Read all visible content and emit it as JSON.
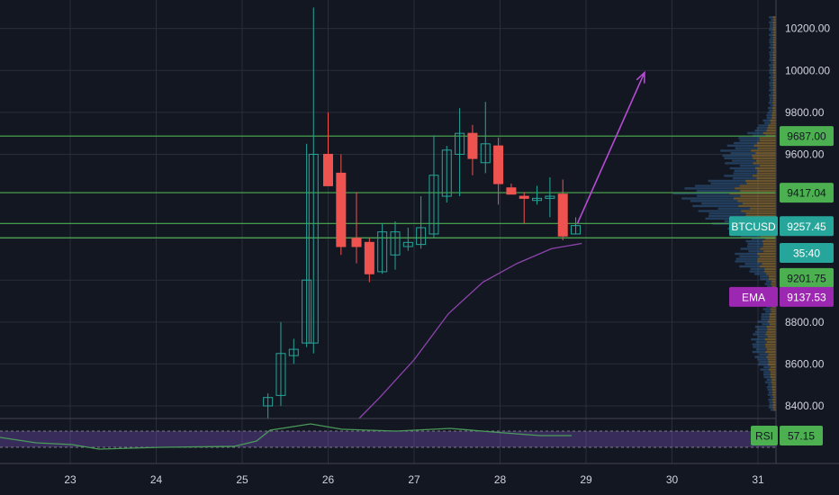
{
  "chart_data": {
    "type": "candlestick",
    "symbol": "BTCUSD",
    "x_dates": [
      "23",
      "24",
      "25",
      "26",
      "27",
      "28",
      "29",
      "30",
      "31"
    ],
    "ylim": [
      8340,
      10300
    ],
    "y_ticks": [
      8400,
      8600,
      8800,
      9600,
      9800,
      10000,
      10200
    ],
    "y_tick_labels": [
      "8400.00",
      "8600.00",
      "8800.00",
      "9600.00",
      "9800.00",
      "10000.00",
      "10200.00"
    ],
    "candles": [
      {
        "x": 25.3,
        "o": 8400,
        "h": 8460,
        "l": 8340,
        "c": 8440
      },
      {
        "x": 25.45,
        "o": 8450,
        "h": 8800,
        "l": 8400,
        "c": 8650
      },
      {
        "x": 25.6,
        "o": 8640,
        "h": 8720,
        "l": 8600,
        "c": 8670
      },
      {
        "x": 25.75,
        "o": 8700,
        "h": 9650,
        "l": 8680,
        "c": 9000
      },
      {
        "x": 25.83,
        "o": 8700,
        "h": 10300,
        "l": 8650,
        "c": 9600
      },
      {
        "x": 26.0,
        "o": 9600,
        "h": 9800,
        "l": 9460,
        "c": 9450
      },
      {
        "x": 26.15,
        "o": 9510,
        "h": 9600,
        "l": 9120,
        "c": 9160
      },
      {
        "x": 26.33,
        "o": 9200,
        "h": 9420,
        "l": 9080,
        "c": 9160
      },
      {
        "x": 26.48,
        "o": 9180,
        "h": 9200,
        "l": 8990,
        "c": 9030
      },
      {
        "x": 26.63,
        "o": 9040,
        "h": 9270,
        "l": 9030,
        "c": 9230
      },
      {
        "x": 26.78,
        "o": 9120,
        "h": 9280,
        "l": 9050,
        "c": 9230
      },
      {
        "x": 26.93,
        "o": 9160,
        "h": 9250,
        "l": 9140,
        "c": 9180
      },
      {
        "x": 27.08,
        "o": 9170,
        "h": 9400,
        "l": 9150,
        "c": 9250
      },
      {
        "x": 27.23,
        "o": 9220,
        "h": 9690,
        "l": 9200,
        "c": 9500
      },
      {
        "x": 27.38,
        "o": 9400,
        "h": 9640,
        "l": 9370,
        "c": 9620
      },
      {
        "x": 27.53,
        "o": 9600,
        "h": 9820,
        "l": 9400,
        "c": 9700
      },
      {
        "x": 27.68,
        "o": 9700,
        "h": 9740,
        "l": 9500,
        "c": 9580
      },
      {
        "x": 27.83,
        "o": 9560,
        "h": 9850,
        "l": 9510,
        "c": 9650
      },
      {
        "x": 27.98,
        "o": 9640,
        "h": 9680,
        "l": 9360,
        "c": 9460
      },
      {
        "x": 28.13,
        "o": 9440,
        "h": 9460,
        "l": 9410,
        "c": 9410
      },
      {
        "x": 28.28,
        "o": 9400,
        "h": 9420,
        "l": 9270,
        "c": 9390
      },
      {
        "x": 28.43,
        "o": 9380,
        "h": 9450,
        "l": 9360,
        "c": 9390
      },
      {
        "x": 28.58,
        "o": 9390,
        "h": 9490,
        "l": 9300,
        "c": 9400
      },
      {
        "x": 28.73,
        "o": 9410,
        "h": 9480,
        "l": 9190,
        "c": 9210
      },
      {
        "x": 28.88,
        "o": 9220,
        "h": 9300,
        "l": 9220,
        "c": 9260
      }
    ],
    "ema": {
      "name": "EMA",
      "points": [
        [
          26.36,
          8340
        ],
        [
          26.6,
          8440
        ],
        [
          27.0,
          8620
        ],
        [
          27.4,
          8840
        ],
        [
          27.8,
          8990
        ],
        [
          28.2,
          9080
        ],
        [
          28.6,
          9150
        ],
        [
          28.95,
          9175
        ]
      ]
    },
    "horizontal_levels": [
      9687.0,
      9417.04,
      9270,
      9201.75
    ],
    "price_tags": [
      {
        "label": "",
        "value": "9687.00",
        "price": 9687.0,
        "bg": "#4caf50",
        "fg": "#131722"
      },
      {
        "label": "",
        "value": "9417.04",
        "price": 9417.04,
        "bg": "#4caf50",
        "fg": "#131722"
      },
      {
        "label": "BTCUSD",
        "value": "9257.45",
        "price": 9257.45,
        "bg": "#26a69a",
        "fg": "#ffffff"
      },
      {
        "label": "",
        "value": "35:40",
        "price": 9130,
        "bg": "#26a69a",
        "fg": "#ffffff"
      },
      {
        "label": "",
        "value": "9201.75",
        "price": 9010,
        "bg": "#4caf50",
        "fg": "#131722"
      },
      {
        "label": "EMA",
        "value": "9137.53",
        "price": 8920,
        "bg": "#9c27b0",
        "fg": "#ffffff"
      }
    ],
    "projection_arrow": {
      "from": [
        28.9,
        9270
      ],
      "to": [
        29.68,
        9990
      ],
      "color": "#b84ad6"
    },
    "rsi": {
      "label": "RSI",
      "value": "57.15",
      "bg": "#4caf50",
      "fg": "#131722"
    },
    "colors": {
      "up": "#26a69a",
      "down": "#ef5350",
      "ema": "#8e44ad",
      "level": "#4caf50",
      "grid": "#2a2e39",
      "background": "#131722"
    }
  }
}
